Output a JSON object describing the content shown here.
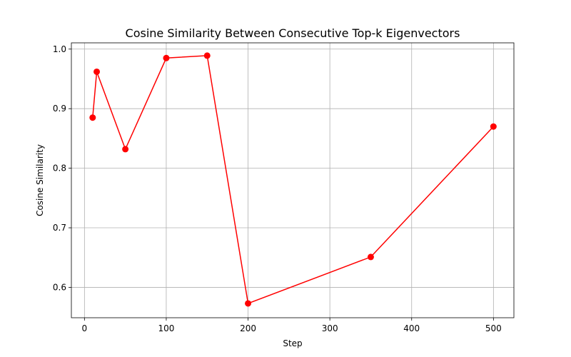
{
  "chart_data": {
    "type": "line",
    "title": "Cosine Similarity Between Consecutive Top-k Eigenvectors",
    "xlabel": "Step",
    "ylabel": "Cosine Similarity",
    "xlim": [
      -16,
      525
    ],
    "ylim": [
      0.549,
      1.0105
    ],
    "xticks": [
      0,
      100,
      200,
      300,
      400,
      500
    ],
    "yticks": [
      0.6,
      0.7,
      0.8,
      0.9,
      1.0
    ],
    "ytick_labels": [
      "0.6",
      "0.7",
      "0.8",
      "0.9",
      "1.0"
    ],
    "grid": true,
    "series": [
      {
        "color": "#ff0000",
        "marker": "circle",
        "x": [
          10,
          15,
          50,
          100,
          150,
          200,
          350,
          500
        ],
        "y": [
          0.885,
          0.962,
          0.832,
          0.985,
          0.989,
          0.573,
          0.651,
          0.87
        ]
      }
    ]
  }
}
